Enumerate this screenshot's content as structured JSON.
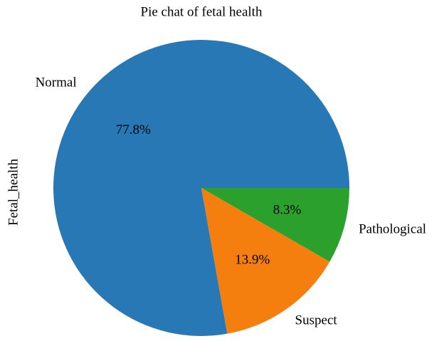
{
  "chart_data": {
    "type": "pie",
    "title": "Pie chat of fetal health",
    "ylabel": "Fetal_health",
    "categories": [
      "Normal",
      "Suspect",
      "Pathological"
    ],
    "values": [
      77.8,
      13.9,
      8.3
    ],
    "value_labels": [
      "77.8%",
      "13.9%",
      "8.3%"
    ],
    "colors": [
      "#2878b5",
      "#f47f0f",
      "#2ca02c"
    ]
  }
}
